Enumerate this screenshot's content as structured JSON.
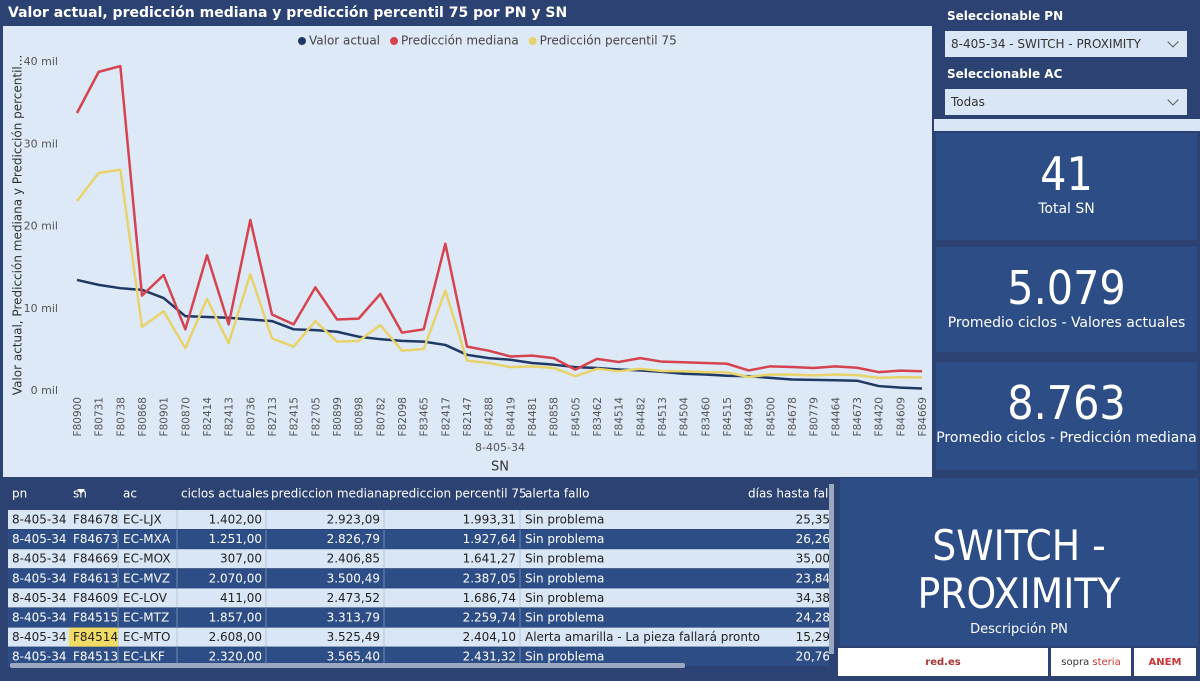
{
  "chart_data": {
    "type": "line",
    "title": "Valor actual, predicción mediana y predicción percentil 75 por PN y SN",
    "y_label": "Valor actual, Predicción mediana y Predicción percentil...",
    "x_label": "SN",
    "x_group": "8-405-34",
    "categories": [
      "F80900",
      "F80731",
      "F80738",
      "F80868",
      "F80901",
      "F80870",
      "F82414",
      "F82413",
      "F80736",
      "F82713",
      "F82415",
      "F82705",
      "F80899",
      "F80898",
      "F80782",
      "F82098",
      "F83465",
      "F82417",
      "F82147",
      "F84288",
      "F84419",
      "F84481",
      "F80858",
      "F84505",
      "F83462",
      "F84514",
      "F84482",
      "F84513",
      "F84504",
      "F83460",
      "F84515",
      "F84499",
      "F84500",
      "F84678",
      "F80779",
      "F84464",
      "F84673",
      "F84420",
      "F84609",
      "F84669"
    ],
    "series": [
      {
        "name": "Valor actual",
        "color": "#1f3864",
        "values": [
          13500,
          12900,
          12500,
          12300,
          11300,
          9100,
          9000,
          8900,
          8700,
          8500,
          7500,
          7400,
          7200,
          6600,
          6300,
          6100,
          6000,
          5600,
          4400,
          4000,
          3800,
          3400,
          3200,
          2900,
          2800,
          2608,
          2500,
          2320,
          2100,
          2000,
          1857,
          1800,
          1600,
          1402,
          1350,
          1300,
          1251,
          600,
          411,
          307
        ]
      },
      {
        "name": "Predicción mediana",
        "color": "#d5434f",
        "values": [
          33800,
          38800,
          39500,
          11600,
          14100,
          7500,
          16500,
          8100,
          20800,
          9300,
          8100,
          12600,
          8700,
          8800,
          11800,
          7100,
          7500,
          17900,
          5400,
          4900,
          4200,
          4300,
          4000,
          2600,
          3900,
          3525.49,
          4000,
          3565.4,
          3500,
          3400,
          3313.79,
          2500,
          3000,
          2923.09,
          2800,
          3000,
          2826.79,
          2300,
          2473.52,
          2406.85
        ]
      },
      {
        "name": "Predicción percentil 75",
        "color": "#e8d36a",
        "values": [
          23100,
          26500,
          26900,
          7800,
          9700,
          5200,
          11200,
          5800,
          14200,
          6400,
          5400,
          8500,
          6000,
          6100,
          8000,
          4900,
          5100,
          12200,
          3700,
          3400,
          2900,
          3000,
          2800,
          1800,
          2700,
          2404.1,
          2700,
          2431.32,
          2400,
          2300,
          2259.74,
          1700,
          2000,
          1993.31,
          1900,
          2000,
          1927.64,
          1600,
          1686.74,
          1641.27
        ]
      }
    ],
    "ylim": [
      0,
      40000
    ],
    "yticks": [
      {
        "value": 0,
        "label": "0 mil"
      },
      {
        "value": 10000,
        "label": "10 mil"
      },
      {
        "value": 20000,
        "label": "20 mil"
      },
      {
        "value": 30000,
        "label": "30 mil"
      },
      {
        "value": 40000,
        "label": "40 mil"
      }
    ],
    "grid": false,
    "legend": "top"
  },
  "slicers": [
    {
      "label": "Seleccionable PN",
      "value": "8-405-34 - SWITCH - PROXIMITY"
    },
    {
      "label": "Seleccionable AC",
      "value": "Todas"
    }
  ],
  "cards": [
    {
      "value": "41",
      "label": "Total SN"
    },
    {
      "value": "5.079",
      "label": "Promedio ciclos - Valores actuales"
    },
    {
      "value": "8.763",
      "label": "Promedio ciclos - Predicción mediana"
    }
  ],
  "description": {
    "value": "SWITCH - PROXIMITY",
    "label": "Descripción PN"
  },
  "table": {
    "columns": [
      "pn",
      "sn",
      "ac",
      "ciclos actuales",
      "prediccion mediana",
      "prediccion percentil 75",
      "alerta fallo",
      "días hasta fallo"
    ],
    "rows": [
      [
        "8-405-34",
        "F84678",
        "EC-LJX",
        "1.402,00",
        "2.923,09",
        "1.993,31",
        "Sin problema",
        "25,35"
      ],
      [
        "8-405-34",
        "F84673",
        "EC-MXA",
        "1.251,00",
        "2.826,79",
        "1.927,64",
        "Sin problema",
        "26,26"
      ],
      [
        "8-405-34",
        "F84669",
        "EC-MOX",
        "307,00",
        "2.406,85",
        "1.641,27",
        "Sin problema",
        "35,00"
      ],
      [
        "8-405-34",
        "F84613",
        "EC-MVZ",
        "2.070,00",
        "3.500,49",
        "2.387,05",
        "Sin problema",
        "23,84"
      ],
      [
        "8-405-34",
        "F84609",
        "EC-LOV",
        "411,00",
        "2.473,52",
        "1.686,74",
        "Sin problema",
        "34,38"
      ],
      [
        "8-405-34",
        "F84515",
        "EC-MTZ",
        "1.857,00",
        "3.313,79",
        "2.259,74",
        "Sin problema",
        "24,28"
      ],
      [
        "8-405-34",
        "F84514",
        "EC-MTO",
        "2.608,00",
        "3.525,49",
        "2.404,10",
        "Alerta amarilla - La pieza fallará pronto",
        "15,29"
      ],
      [
        "8-405-34",
        "F84513",
        "EC-LKF",
        "2.320,00",
        "3.565,40",
        "2.431,32",
        "Sin problema",
        "20,76"
      ]
    ],
    "selected_cell": {
      "row": 6,
      "column": 1
    }
  },
  "logos": [
    "red.es",
    "sopra",
    "steria",
    "ANEM"
  ]
}
